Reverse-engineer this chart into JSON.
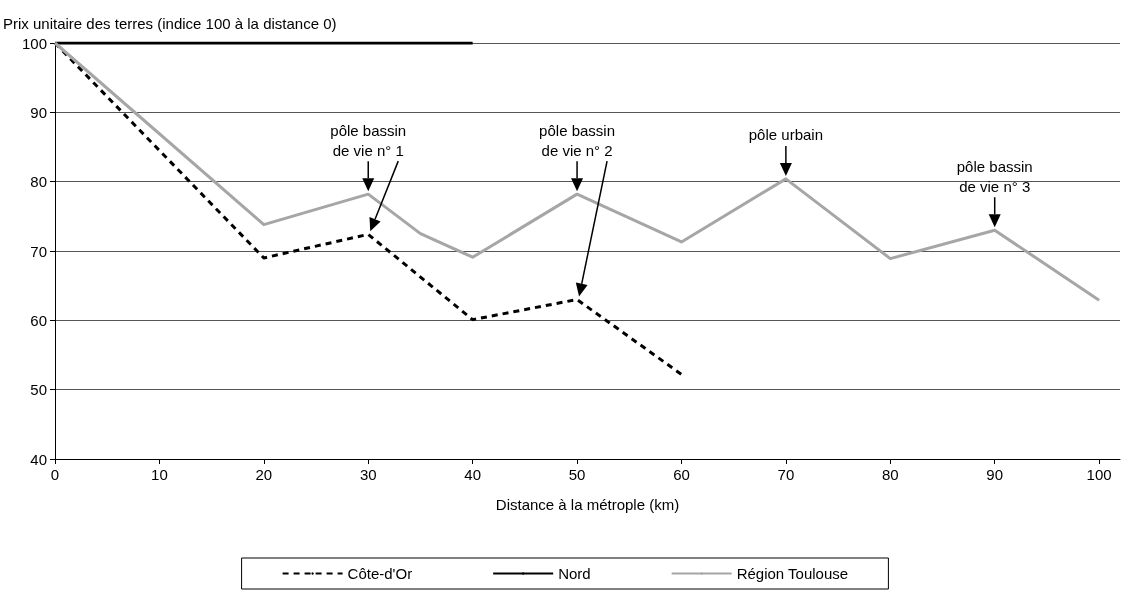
{
  "chart_data": {
    "type": "line",
    "ylabel": "Prix unitaire des terres (indice 100 à la distance 0)",
    "xlabel": "Distance à la métrople (km)",
    "xlim": [
      0,
      102
    ],
    "xticks": [
      0,
      10,
      20,
      30,
      40,
      50,
      60,
      70,
      80,
      90,
      100
    ],
    "ylim": [
      40,
      100
    ],
    "yticks": [
      40,
      50,
      60,
      70,
      80,
      90,
      100
    ],
    "grid": "y",
    "legend": "bottom",
    "marker": "none",
    "series": [
      {
        "name": "Côte-d'Or",
        "color": "#000000",
        "line_style": "dashed",
        "x": [
          0,
          20,
          30,
          40,
          50,
          60
        ],
        "values": [
          100,
          69,
          72.4,
          60.1,
          63,
          52.2
        ]
      },
      {
        "name": "Nord",
        "color": "#000000",
        "line_style": "solid",
        "x": [
          0,
          40
        ],
        "values": [
          100,
          100
        ]
      },
      {
        "name": "Région Toulouse",
        "color": "#a6a6a6",
        "line_style": "solid",
        "x": [
          0,
          20,
          30,
          35,
          40,
          50,
          60,
          70,
          80,
          90,
          100
        ],
        "values": [
          100,
          73.8,
          78.2,
          72.5,
          69.1,
          78.2,
          71.3,
          80.4,
          68.9,
          73,
          62.9
        ]
      }
    ],
    "annotations": [
      {
        "text": "pôle bassin\nde vie n° 1",
        "x": 30,
        "y": 78.2
      },
      {
        "text": "pôle bassin\nde vie n° 2",
        "x": 50,
        "y": 78.2
      },
      {
        "text": "pôle urbain",
        "x": 70,
        "y": 80.4
      },
      {
        "text": "pôle bassin\nde vie n° 3",
        "x": 90,
        "y": 73
      }
    ]
  }
}
